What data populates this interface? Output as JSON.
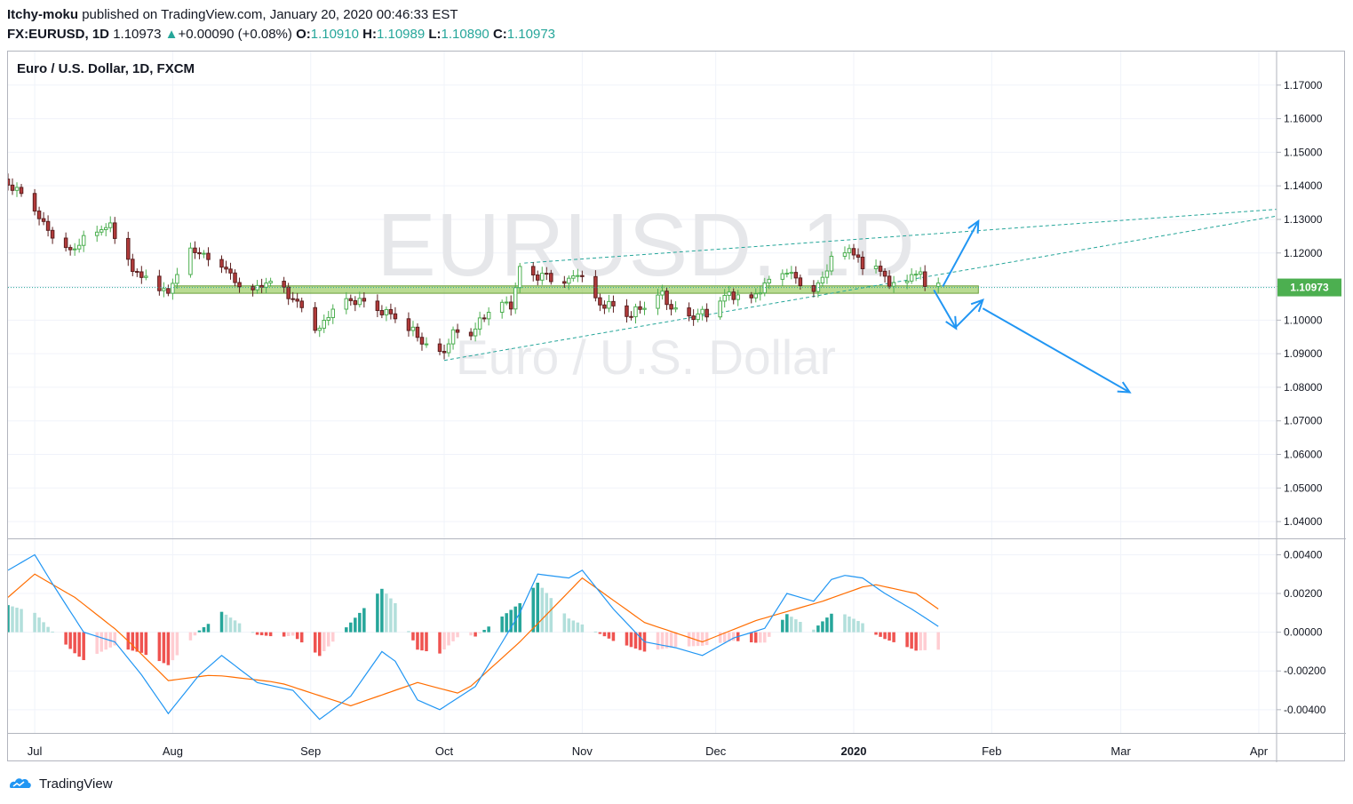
{
  "header": {
    "author": "Itchy-moku",
    "published": "published on TradingView.com, January 20, 2020 00:46:33 EST",
    "symbol": "FX:EURUSD, 1D",
    "last": "1.10973",
    "arrow": "▲",
    "change": "+0.00090 (+0.08%)",
    "o_label": "O:",
    "o_val": "1.10910",
    "h_label": "H:",
    "h_val": "1.10989",
    "l_label": "L:",
    "l_val": "1.10890",
    "c_label": "C:",
    "c_val": "1.10973"
  },
  "footer": {
    "brand": "TradingView"
  },
  "colors": {
    "up": "#26a69a",
    "down": "#ef5350",
    "up_candle_fill": "#ffffff",
    "up_candle_border": "#4caf50",
    "down_candle": "#b33b3b",
    "zone": "#8bc34a",
    "macd_line": "#2196f3",
    "signal_line": "#ff6d00",
    "hist_up_strong": "#26a69a",
    "hist_up_weak": "#b2dfdb",
    "hist_down_strong": "#ef5350",
    "hist_down_weak": "#ffcdd2",
    "arrows": "#2196f3",
    "trend": "#26a69a",
    "last_badge": "#4caf50"
  },
  "chart_data": [
    {
      "type": "candlestick",
      "title": "Euro / U.S. Dollar, 1D, FXCM",
      "watermark_symbol": "EURUSD, 1D",
      "watermark_name": "Euro / U.S. Dollar",
      "y_ticks": [
        "1.17000",
        "1.16000",
        "1.15000",
        "1.14000",
        "1.13000",
        "1.12000",
        "1.11000",
        "1.10000",
        "1.09000",
        "1.08000",
        "1.07000",
        "1.06000",
        "1.05000",
        "1.04000"
      ],
      "ylim": [
        1.035,
        1.18
      ],
      "last_price_label": "1.10973",
      "last_price": 1.10973,
      "x_ticks": [
        "Jul",
        "Aug",
        "Sep",
        "Oct",
        "Nov",
        "Dec",
        "2020",
        "Feb",
        "Mar",
        "Apr"
      ],
      "x_tick_dates": [
        "2019-07-01",
        "2019-08-01",
        "2019-09-01",
        "2019-10-01",
        "2019-11-01",
        "2019-12-01",
        "2020-01-01",
        "2020-02-01",
        "2020-03-01",
        "2020-04-01"
      ],
      "xlim": [
        "2019-06-25",
        "2020-04-05"
      ],
      "close_anchors": [
        [
          "2019-06-25",
          1.1405
        ],
        [
          "2019-06-28",
          1.137
        ],
        [
          "2019-07-03",
          1.1285
        ],
        [
          "2019-07-09",
          1.121
        ],
        [
          "2019-07-15",
          1.126
        ],
        [
          "2019-07-18",
          1.128
        ],
        [
          "2019-07-23",
          1.115
        ],
        [
          "2019-07-26",
          1.113
        ],
        [
          "2019-07-31",
          1.108
        ],
        [
          "2019-08-05",
          1.12
        ],
        [
          "2019-08-08",
          1.12
        ],
        [
          "2019-08-13",
          1.116
        ],
        [
          "2019-08-16",
          1.109
        ],
        [
          "2019-08-20",
          1.109
        ],
        [
          "2019-08-23",
          1.112
        ],
        [
          "2019-08-29",
          1.1055
        ],
        [
          "2019-09-03",
          1.097
        ],
        [
          "2019-09-06",
          1.103
        ],
        [
          "2019-09-12",
          1.1065
        ],
        [
          "2019-09-17",
          1.103
        ],
        [
          "2019-09-20",
          1.1005
        ],
        [
          "2019-09-25",
          1.095
        ],
        [
          "2019-09-30",
          1.0895
        ],
        [
          "2019-10-03",
          1.096
        ],
        [
          "2019-10-08",
          1.097
        ],
        [
          "2019-10-11",
          1.103
        ],
        [
          "2019-10-16",
          1.105
        ],
        [
          "2019-10-18",
          1.115
        ],
        [
          "2019-10-23",
          1.113
        ],
        [
          "2019-10-29",
          1.111
        ],
        [
          "2019-10-31",
          1.115
        ],
        [
          "2019-11-04",
          1.106
        ],
        [
          "2019-11-08",
          1.1035
        ],
        [
          "2019-11-12",
          1.101
        ],
        [
          "2019-11-15",
          1.105
        ],
        [
          "2019-11-19",
          1.108
        ],
        [
          "2019-11-22",
          1.102
        ],
        [
          "2019-11-26",
          1.101
        ],
        [
          "2019-11-29",
          1.102
        ],
        [
          "2019-12-04",
          1.108
        ],
        [
          "2019-12-09",
          1.107
        ],
        [
          "2019-12-13",
          1.111
        ],
        [
          "2019-12-17",
          1.114
        ],
        [
          "2019-12-20",
          1.112
        ],
        [
          "2019-12-23",
          1.109
        ],
        [
          "2019-12-27",
          1.1175
        ],
        [
          "2019-12-31",
          1.121
        ],
        [
          "2020-01-03",
          1.116
        ],
        [
          "2020-01-07",
          1.115
        ],
        [
          "2020-01-09",
          1.111
        ],
        [
          "2020-01-13",
          1.113
        ],
        [
          "2020-01-16",
          1.114
        ],
        [
          "2020-01-17",
          1.109
        ],
        [
          "2020-01-20",
          1.1097
        ]
      ],
      "support_zone": {
        "from": "2019-08-01",
        "to": "2020-01-29",
        "lower": 1.108,
        "upper": 1.1102
      },
      "trendlines": [
        {
          "from": [
            "2019-10-19",
            1.117
          ],
          "to": [
            "2020-04-05",
            1.133
          ]
        },
        {
          "from": [
            "2019-10-01",
            1.088
          ],
          "to": [
            "2020-04-05",
            1.131
          ]
        }
      ],
      "projection_arrows": [
        {
          "from": [
            "2020-01-21",
            1.11
          ],
          "to": [
            "2020-01-29",
            1.1295
          ]
        },
        {
          "from": [
            "2020-01-19",
            1.109
          ],
          "to": [
            "2020-01-24",
            1.0975
          ]
        },
        {
          "from": [
            "2020-01-24",
            1.098
          ],
          "to": [
            "2020-01-30",
            1.106
          ]
        },
        {
          "from": [
            "2020-01-30",
            1.1035
          ],
          "to": [
            "2020-03-03",
            1.0785
          ]
        }
      ]
    },
    {
      "type": "macd",
      "y_ticks": [
        "0.00400",
        "0.00200",
        "0.00000",
        "-0.00200",
        "-0.00400"
      ],
      "ylim": [
        -0.0052,
        0.0048
      ],
      "macd_anchors": [
        [
          "2019-06-25",
          0.0032
        ],
        [
          "2019-07-01",
          0.004
        ],
        [
          "2019-07-05",
          0.0025
        ],
        [
          "2019-07-12",
          0.0
        ],
        [
          "2019-07-19",
          -0.0005
        ],
        [
          "2019-07-25",
          -0.0022
        ],
        [
          "2019-07-31",
          -0.0042
        ],
        [
          "2019-08-07",
          -0.0022
        ],
        [
          "2019-08-12",
          -0.0012
        ],
        [
          "2019-08-20",
          -0.0026
        ],
        [
          "2019-08-28",
          -0.003
        ],
        [
          "2019-09-03",
          -0.0045
        ],
        [
          "2019-09-10",
          -0.0033
        ],
        [
          "2019-09-17",
          -0.001
        ],
        [
          "2019-09-20",
          -0.0015
        ],
        [
          "2019-09-25",
          -0.0035
        ],
        [
          "2019-09-30",
          -0.004
        ],
        [
          "2019-10-08",
          -0.0028
        ],
        [
          "2019-10-18",
          0.001
        ],
        [
          "2019-10-22",
          0.003
        ],
        [
          "2019-10-29",
          0.0028
        ],
        [
          "2019-11-01",
          0.0032
        ],
        [
          "2019-11-08",
          0.0012
        ],
        [
          "2019-11-15",
          -0.0005
        ],
        [
          "2019-11-22",
          -0.0008
        ],
        [
          "2019-11-28",
          -0.0012
        ],
        [
          "2019-12-05",
          -0.0003
        ],
        [
          "2019-12-12",
          0.0002
        ],
        [
          "2019-12-17",
          0.002
        ],
        [
          "2019-12-23",
          0.0016
        ],
        [
          "2019-12-28",
          0.003
        ],
        [
          "2020-01-03",
          0.0028
        ],
        [
          "2020-01-08",
          0.002
        ],
        [
          "2020-01-14",
          0.0012
        ],
        [
          "2020-01-20",
          0.0003
        ]
      ],
      "signal_anchors": [
        [
          "2019-06-25",
          0.0018
        ],
        [
          "2019-07-01",
          0.003
        ],
        [
          "2019-07-10",
          0.0018
        ],
        [
          "2019-07-20",
          0.0
        ],
        [
          "2019-07-31",
          -0.0025
        ],
        [
          "2019-08-10",
          -0.0022
        ],
        [
          "2019-08-25",
          -0.0026
        ],
        [
          "2019-09-10",
          -0.0038
        ],
        [
          "2019-09-25",
          -0.0026
        ],
        [
          "2019-10-05",
          -0.0032
        ],
        [
          "2019-10-18",
          -0.0005
        ],
        [
          "2019-11-01",
          0.0028
        ],
        [
          "2019-11-15",
          0.0005
        ],
        [
          "2019-11-28",
          -0.0005
        ],
        [
          "2019-12-10",
          0.0006
        ],
        [
          "2019-12-25",
          0.0016
        ],
        [
          "2020-01-05",
          0.0025
        ],
        [
          "2020-01-15",
          0.002
        ],
        [
          "2020-01-20",
          0.0012
        ]
      ]
    }
  ]
}
